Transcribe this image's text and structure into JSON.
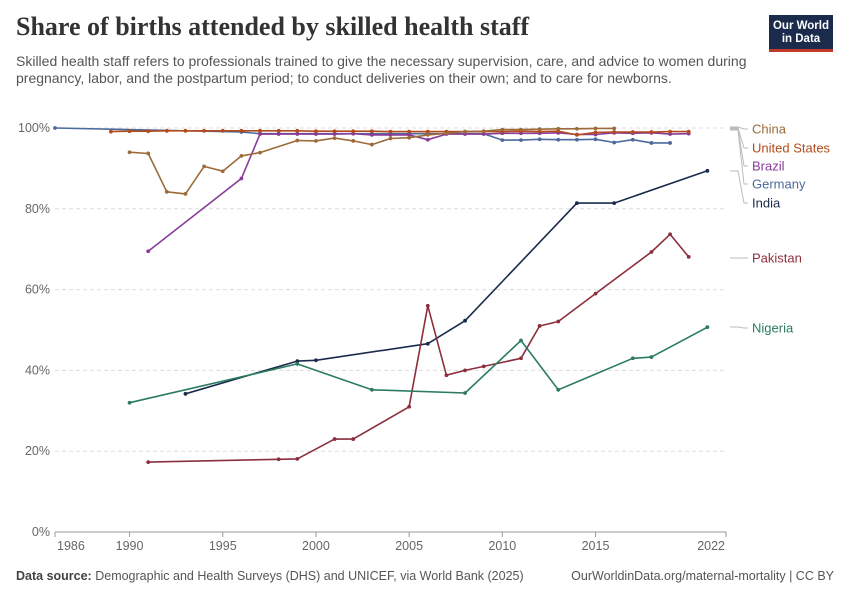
{
  "header": {
    "title": "Share of births attended by skilled health staff",
    "subtitle": "Skilled health staff refers to professionals trained to give the necessary supervision, care, and advice to women during pregnancy, labor, and the postpartum period; to conduct deliveries on their own; and to care for newborns.",
    "logo_line1": "Our World",
    "logo_line2": "in Data"
  },
  "footer": {
    "source_label": "Data source:",
    "source_text": "Demographic and Health Surveys (DHS) and UNICEF, via World Bank (2025)",
    "url_text": "OurWorldinData.org/maternal-mortality | CC BY"
  },
  "chart_data": {
    "type": "line",
    "title": "Share of births attended by skilled health staff",
    "xlabel": "",
    "ylabel": "",
    "xlim": [
      1986,
      2022
    ],
    "ylim": [
      0,
      100
    ],
    "x_ticks": [
      1986,
      1990,
      1995,
      2000,
      2005,
      2010,
      2015,
      2022
    ],
    "y_ticks": [
      0,
      20,
      40,
      60,
      80,
      100
    ],
    "y_tick_labels": [
      "0%",
      "20%",
      "40%",
      "60%",
      "80%",
      "100%"
    ],
    "grid": true,
    "series": [
      {
        "name": "Germany",
        "color": "#4c6a9c",
        "x": [
          1986,
          1996,
          1997,
          1998,
          1999,
          2000,
          2001,
          2002,
          2003,
          2004,
          2005,
          2006,
          2007,
          2008,
          2009,
          2010,
          2011,
          2012,
          2013,
          2014,
          2015,
          2016,
          2017,
          2018,
          2019
        ],
        "y": [
          100,
          99,
          98.6,
          98.6,
          98.6,
          98.6,
          98.6,
          98.6,
          98.6,
          98.6,
          98.6,
          98.6,
          98.6,
          98.6,
          98.6,
          97,
          97,
          97.2,
          97.1,
          97.1,
          97.2,
          96.4,
          97.1,
          96.3,
          96.3
        ]
      },
      {
        "name": "Brazil",
        "color": "#883b99",
        "x": [
          1991,
          1996,
          1997,
          1998,
          1999,
          2000,
          2001,
          2002,
          2003,
          2004,
          2005,
          2006,
          2007,
          2008,
          2009,
          2010,
          2011,
          2012,
          2013,
          2014,
          2015,
          2016,
          2017,
          2018,
          2019,
          2020
        ],
        "y": [
          69.5,
          87.5,
          98.5,
          98.5,
          98.5,
          98.5,
          98.5,
          98.6,
          98.3,
          98.3,
          98.3,
          97.1,
          98.5,
          98.5,
          98.5,
          98.7,
          98.7,
          98.7,
          98.8,
          98.4,
          98.4,
          98.8,
          98.7,
          98.8,
          98.5,
          98.6
        ]
      },
      {
        "name": "United States",
        "color": "#b34b1d",
        "x": [
          1989,
          1990,
          1991,
          1992,
          1993,
          1994,
          1995,
          1996,
          1997,
          1998,
          1999,
          2000,
          2001,
          2002,
          2003,
          2004,
          2005,
          2006,
          2007,
          2008,
          2009,
          2010,
          2011,
          2012,
          2013,
          2014,
          2015,
          2016,
          2017,
          2018,
          2019,
          2020
        ],
        "y": [
          99.1,
          99.2,
          99.2,
          99.3,
          99.3,
          99.3,
          99.3,
          99.3,
          99.3,
          99.3,
          99.3,
          99.2,
          99.2,
          99.2,
          99.2,
          99.1,
          99.1,
          99.1,
          99.1,
          99.1,
          99.1,
          99.1,
          99.2,
          99.1,
          99.2,
          98.3,
          98.9,
          99,
          99,
          99,
          99.1,
          99.1
        ]
      },
      {
        "name": "China",
        "color": "#9c6b3a",
        "x": [
          1990,
          1991,
          1992,
          1993,
          1994,
          1995,
          1996,
          1997,
          1999,
          2000,
          2001,
          2002,
          2003,
          2004,
          2005,
          2006,
          2007,
          2008,
          2009,
          2010,
          2011,
          2012,
          2013,
          2014,
          2015,
          2016
        ],
        "y": [
          94,
          93.7,
          84.2,
          83.7,
          90.5,
          89.3,
          93.1,
          93.9,
          96.9,
          96.8,
          97.5,
          96.8,
          95.9,
          97.4,
          97.6,
          98.3,
          98.7,
          99.1,
          99.2,
          99.6,
          99.6,
          99.7,
          99.8,
          99.8,
          99.9,
          99.9
        ]
      },
      {
        "name": "India",
        "color": "#1a2b4c",
        "x": [
          1993,
          1999,
          2000,
          2006,
          2008,
          2014,
          2016,
          2021
        ],
        "y": [
          34.2,
          42.3,
          42.5,
          46.6,
          52.3,
          81.4,
          81.4,
          89.4
        ]
      },
      {
        "name": "Pakistan",
        "color": "#8c2f3d",
        "x": [
          1991,
          1998,
          1999,
          2001,
          2002,
          2005,
          2006,
          2007,
          2008,
          2009,
          2011,
          2012,
          2013,
          2015,
          2018,
          2019,
          2020
        ],
        "y": [
          17.3,
          18,
          18.1,
          23,
          23,
          31,
          56,
          38.8,
          40,
          41,
          43,
          51,
          52.1,
          59,
          69.3,
          73.7,
          68.1
        ]
      },
      {
        "name": "Nigeria",
        "color": "#2a7b62",
        "x": [
          1990,
          1999,
          2003,
          2008,
          2011,
          2013,
          2017,
          2018,
          2021
        ],
        "y": [
          32,
          41.6,
          35.2,
          34.4,
          47.4,
          35.2,
          43,
          43.3,
          50.7
        ]
      }
    ],
    "legend": [
      {
        "name": "China",
        "color": "#9c6b3a"
      },
      {
        "name": "United States",
        "color": "#b34b1d"
      },
      {
        "name": "Brazil",
        "color": "#883b99"
      },
      {
        "name": "Germany",
        "color": "#4c6a9c"
      },
      {
        "name": "India",
        "color": "#1a2b4c"
      },
      {
        "name": "Pakistan",
        "color": "#8c2f3d"
      },
      {
        "name": "Nigeria",
        "color": "#2a7b62"
      }
    ]
  }
}
